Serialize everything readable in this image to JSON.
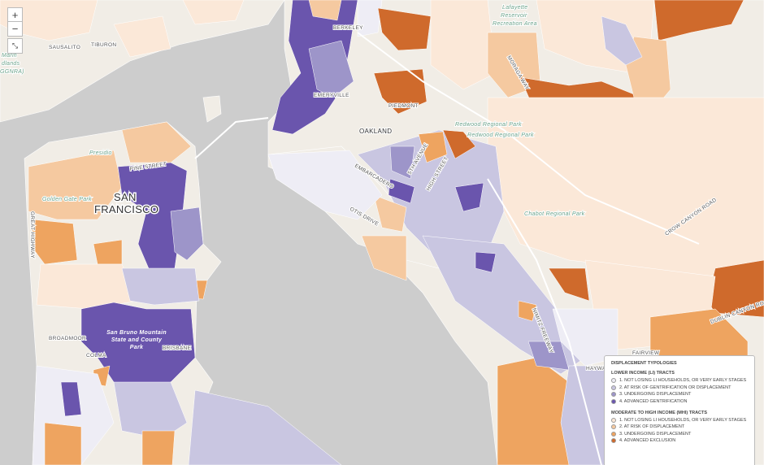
{
  "controls": {
    "zoom_in": "+",
    "zoom_out": "−"
  },
  "labels": [
    "TIBURON",
    "SAUSALITO",
    "Marin",
    "dlands",
    "GGNRA)",
    "BERKELEY",
    "EMERYVILLE",
    "PIEDMONT",
    "OAKLAND",
    "Presidio",
    "PINE STREET",
    "SAN",
    "FRANCISCO",
    "Golden Gate Park",
    "GREAT HIGHWAY",
    "EMBARCADERO",
    "5TH AVENUE",
    "HIGH STREET",
    "OTIS DRIVE",
    "BROADMOOR",
    "COLMA",
    "BRISBANE",
    "San Bruno Mountain",
    "State and County",
    "Park",
    "Lafayette",
    "Reservoir",
    "Recreation Area",
    "MORAGA WAY",
    "Redwood Regional Park",
    "Redwood Regional Park",
    "Chabot Regional Park",
    "CROW CANYON ROAD",
    "DUBLIN CANYON ROAD",
    "FAIRVIEW",
    "HAYWA",
    "NIMITZ FREEWAY"
  ],
  "legend": {
    "title": "DISPLACEMENT TYPOLOGIES",
    "groups": [
      {
        "heading": "LOWER INCOME (LI) TRACTS",
        "items": [
          {
            "label": "1. NOT LOSING LI HOUSEHOLDS, OR VERY EARLY STAGES",
            "color": "#eeedf5"
          },
          {
            "label": "2. AT RISK OF GENTRIFICATION OR DISPLACEMENT",
            "color": "#c9c6e1"
          },
          {
            "label": "3. UNDERGOING DISPLACEMENT",
            "color": "#9d95c9"
          },
          {
            "label": "4. ADVANCED GENTRIFICATION",
            "color": "#6a55ad"
          }
        ]
      },
      {
        "heading": "MODERATE TO HIGH INCOME (MHI) TRACTS",
        "items": [
          {
            "label": "1. NOT LOSING LI HOUSEHOLDS, OR VERY EARLY STAGES",
            "color": "#fbe8d8"
          },
          {
            "label": "2. AT RISK OF DISPLACEMENT",
            "color": "#f5c9a0"
          },
          {
            "label": "3. UNDERGOING DISPLACEMENT",
            "color": "#eea460"
          },
          {
            "label": "4. ADVANCED EXCLUSION",
            "color": "#cf6a2c"
          }
        ]
      }
    ]
  }
}
